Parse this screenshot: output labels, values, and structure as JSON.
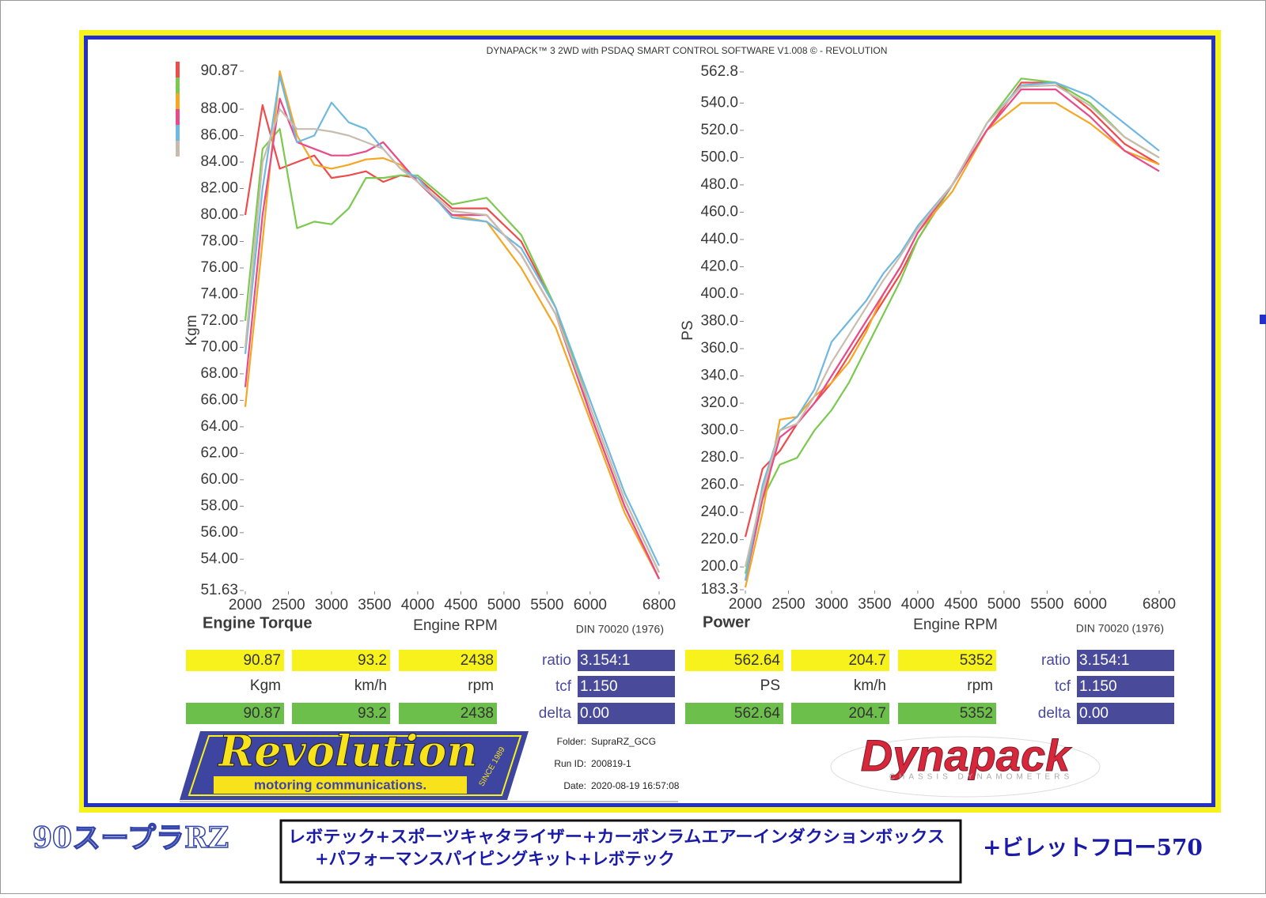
{
  "header": {
    "title": "DYNAPACK™ 3 2WD with PSDAQ SMART CONTROL SOFTWARE V1.008 © - REVOLUTION"
  },
  "chart_data": [
    {
      "type": "line",
      "title": "Engine Torque",
      "x_label": "Engine RPM",
      "y_label": "Kgm",
      "note": "DIN 70020 (1976)",
      "x": [
        2000,
        2200,
        2400,
        2600,
        2800,
        3000,
        3200,
        3400,
        3600,
        3800,
        4000,
        4400,
        4800,
        5200,
        5600,
        6000,
        6400,
        6800
      ],
      "xlim": [
        2000,
        6800
      ],
      "xticks": [
        2000,
        2500,
        3000,
        3500,
        4000,
        4500,
        5000,
        5500,
        6000,
        6800
      ],
      "ylim": [
        51.63,
        90.87
      ],
      "yticks": [
        51.63,
        {
          "value": 54,
          "label": "54.00"
        },
        {
          "value": 56,
          "label": "56.00"
        },
        {
          "value": 58,
          "label": "58.00"
        },
        {
          "value": 60,
          "label": "60.00"
        },
        {
          "value": 62,
          "label": "62.00"
        },
        {
          "value": 64,
          "label": "64.00"
        },
        {
          "value": 66,
          "label": "66.00"
        },
        {
          "value": 68,
          "label": "68.00"
        },
        {
          "value": 70,
          "label": "70.00"
        },
        {
          "value": 72,
          "label": "72.00"
        },
        {
          "value": 74,
          "label": "74.00"
        },
        {
          "value": 76,
          "label": "76.00"
        },
        {
          "value": 78,
          "label": "78.00"
        },
        {
          "value": 80,
          "label": "80.00"
        },
        {
          "value": 82,
          "label": "82.00"
        },
        {
          "value": 84,
          "label": "84.00"
        },
        {
          "value": 86,
          "label": "86.00"
        },
        {
          "value": 88,
          "label": "88.00"
        },
        90.87
      ],
      "legend_swatches": true,
      "series": [
        {
          "color": "#ef4b4b",
          "values": [
            80,
            88.3,
            83.5,
            84,
            84.5,
            82.8,
            83,
            83.3,
            82.5,
            83,
            82.8,
            80.5,
            80.5,
            78,
            73,
            65,
            58,
            52.5
          ]
        },
        {
          "color": "#7cc94f",
          "values": [
            72,
            85,
            86.5,
            79,
            79.5,
            79.3,
            80.5,
            82.8,
            82.8,
            83,
            83,
            80.8,
            81.3,
            78.5,
            73,
            65.5,
            58.5,
            53
          ]
        },
        {
          "color": "#f5a623",
          "values": [
            65.5,
            78,
            90.87,
            86,
            83.8,
            83.5,
            83.8,
            84.2,
            84.3,
            83.8,
            82.5,
            80,
            79.5,
            76,
            71.5,
            64.5,
            57.5,
            52.5
          ]
        },
        {
          "color": "#e84a8a",
          "values": [
            67,
            80,
            88.8,
            85.5,
            85,
            84.5,
            84.5,
            84.8,
            85.5,
            84,
            82.5,
            80,
            80,
            77,
            72.5,
            65,
            58,
            52.5
          ]
        },
        {
          "color": "#6fb8e0",
          "values": [
            69.5,
            82,
            90.5,
            85.5,
            86,
            88.5,
            87,
            86.5,
            85,
            83.5,
            82.8,
            79.8,
            79.5,
            77.5,
            73,
            66,
            59,
            53.5
          ]
        },
        {
          "color": "#c9bcae",
          "values": [
            70,
            84,
            88,
            86.5,
            86.5,
            86.3,
            86,
            85.5,
            85,
            83.5,
            82.5,
            80.3,
            80,
            77,
            72.5,
            65.5,
            58.5,
            53
          ]
        }
      ]
    },
    {
      "type": "line",
      "title": "Power",
      "x_label": "Engine RPM",
      "y_label": "PS",
      "note": "DIN 70020 (1976)",
      "x": [
        2000,
        2200,
        2400,
        2600,
        2800,
        3000,
        3200,
        3400,
        3600,
        3800,
        4000,
        4400,
        4800,
        5200,
        5600,
        6000,
        6400,
        6800
      ],
      "xlim": [
        2000,
        6800
      ],
      "xticks": [
        2000,
        2500,
        3000,
        3500,
        4000,
        4500,
        5000,
        5500,
        6000,
        6800
      ],
      "ylim": [
        183.3,
        562.8
      ],
      "yticks": [
        183.3,
        {
          "value": 200,
          "label": "200.0"
        },
        {
          "value": 220,
          "label": "220.0"
        },
        {
          "value": 240,
          "label": "240.0"
        },
        {
          "value": 260,
          "label": "260.0"
        },
        {
          "value": 280,
          "label": "280.0"
        },
        {
          "value": 300,
          "label": "300.0"
        },
        {
          "value": 320,
          "label": "320.0"
        },
        {
          "value": 340,
          "label": "340.0"
        },
        {
          "value": 360,
          "label": "360.0"
        },
        {
          "value": 380,
          "label": "380.0"
        },
        {
          "value": 400,
          "label": "400.0"
        },
        {
          "value": 420,
          "label": "420.0"
        },
        {
          "value": 440,
          "label": "440.0"
        },
        {
          "value": 460,
          "label": "460.0"
        },
        {
          "value": 480,
          "label": "480.0"
        },
        {
          "value": 500,
          "label": "500.0"
        },
        {
          "value": 520,
          "label": "520.0"
        },
        {
          "value": 540,
          "label": "540.0"
        },
        562.8
      ],
      "series": [
        {
          "color": "#ef4b4b",
          "values": [
            222,
            272,
            285,
            305,
            320,
            335,
            355,
            375,
            395,
            415,
            440,
            480,
            520,
            555,
            555,
            535,
            510,
            495
          ]
        },
        {
          "color": "#7cc94f",
          "values": [
            195,
            250,
            275,
            280,
            300,
            315,
            335,
            360,
            385,
            410,
            440,
            480,
            525,
            558,
            555,
            540,
            515,
            500
          ]
        },
        {
          "color": "#f5a623",
          "values": [
            185,
            240,
            308,
            310,
            325,
            335,
            350,
            372,
            400,
            420,
            445,
            475,
            520,
            540,
            540,
            525,
            505,
            495
          ]
        },
        {
          "color": "#e84a8a",
          "values": [
            190,
            250,
            295,
            305,
            320,
            340,
            360,
            380,
            400,
            420,
            445,
            480,
            520,
            550,
            550,
            530,
            505,
            490
          ]
        },
        {
          "color": "#6fb8e0",
          "values": [
            190,
            260,
            300,
            310,
            330,
            365,
            380,
            395,
            415,
            430,
            450,
            480,
            525,
            553,
            555,
            545,
            525,
            505
          ]
        },
        {
          "color": "#c9bcae",
          "values": [
            200,
            255,
            300,
            305,
            325,
            350,
            370,
            390,
            410,
            428,
            448,
            480,
            525,
            552,
            553,
            538,
            515,
            500
          ]
        }
      ]
    }
  ],
  "readouts": [
    {
      "top": [
        "90.87",
        "93.2",
        "2438"
      ],
      "units": [
        "Kgm",
        "km/h",
        "rpm"
      ],
      "bottom": [
        "90.87",
        "93.2",
        "2438"
      ],
      "params": [
        {
          "label": "ratio",
          "value": "3.154:1"
        },
        {
          "label": "tcf",
          "value": "1.150"
        },
        {
          "label": "delta",
          "value": "0.00"
        }
      ]
    },
    {
      "top": [
        "562.64",
        "204.7",
        "5352"
      ],
      "units": [
        "PS",
        "km/h",
        "rpm"
      ],
      "bottom": [
        "562.64",
        "204.7",
        "5352"
      ],
      "params": [
        {
          "label": "ratio",
          "value": "3.154:1"
        },
        {
          "label": "tcf",
          "value": "1.150"
        },
        {
          "label": "delta",
          "value": "0.00"
        }
      ]
    }
  ],
  "run_info": [
    {
      "label": "Folder:",
      "value": "SupraRZ_GCG"
    },
    {
      "label": "Run ID:",
      "value": "200819-1"
    },
    {
      "label": "Date:",
      "value": "2020-08-19 16:57:08"
    }
  ],
  "logos": {
    "revolution": "Revolution",
    "revolution_tagline": "motoring communications.",
    "revolution_since": "SINCE 1989",
    "dynapack": "Dynapack",
    "dynapack_tagline": "CHASSIS DYNAMOMETERS"
  },
  "footer": {
    "model": "90スープラRZ",
    "mods": [
      "レボテック+スポーツキャタライザー+カーボンラムエアーインダクションボックス",
      "+パフォーマンスパイピングキット+レボテック"
    ],
    "extra": "+ビレットフロー570"
  }
}
